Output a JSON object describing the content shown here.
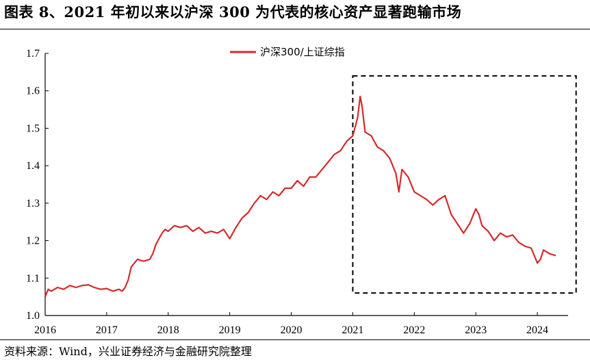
{
  "title": "图表 8、2021 年初以来以沪深 300 为代表的核心资产显著跑输市场",
  "source": "资料来源：Wind，兴业证券经济与金融研究院整理",
  "colors": {
    "series": "#d42a2a",
    "axis": "#000000",
    "box": "#000000"
  },
  "chart_data": {
    "type": "line",
    "title": "",
    "xlabel": "",
    "ylabel": "",
    "legend": "top-center",
    "grid": false,
    "xlim": [
      2016.0,
      2024.5
    ],
    "ylim": [
      1.0,
      1.7
    ],
    "yticks": [
      "1.0",
      "1.1",
      "1.2",
      "1.3",
      "1.4",
      "1.5",
      "1.6",
      "1.7"
    ],
    "xticks": [
      "2016",
      "2017",
      "2018",
      "2019",
      "2020",
      "2021",
      "2022",
      "2023",
      "2024"
    ],
    "series": [
      {
        "name": "沪深300/上证综指",
        "x": [
          2016.0,
          2016.05,
          2016.1,
          2016.2,
          2016.3,
          2016.4,
          2016.5,
          2016.6,
          2016.7,
          2016.8,
          2016.9,
          2017.0,
          2017.1,
          2017.2,
          2017.25,
          2017.3,
          2017.35,
          2017.4,
          2017.45,
          2017.5,
          2017.6,
          2017.7,
          2017.75,
          2017.8,
          2017.9,
          2017.95,
          2018.0,
          2018.1,
          2018.2,
          2018.3,
          2018.4,
          2018.5,
          2018.6,
          2018.7,
          2018.8,
          2018.9,
          2019.0,
          2019.1,
          2019.2,
          2019.3,
          2019.4,
          2019.5,
          2019.6,
          2019.7,
          2019.8,
          2019.9,
          2020.0,
          2020.1,
          2020.2,
          2020.3,
          2020.4,
          2020.5,
          2020.6,
          2020.7,
          2020.8,
          2020.9,
          2021.0,
          2021.05,
          2021.08,
          2021.12,
          2021.15,
          2021.2,
          2021.3,
          2021.4,
          2021.5,
          2021.6,
          2021.7,
          2021.75,
          2021.8,
          2021.9,
          2022.0,
          2022.1,
          2022.2,
          2022.3,
          2022.4,
          2022.5,
          2022.6,
          2022.7,
          2022.8,
          2022.9,
          2023.0,
          2023.05,
          2023.1,
          2023.2,
          2023.3,
          2023.4,
          2023.5,
          2023.6,
          2023.7,
          2023.8,
          2023.9,
          2024.0,
          2024.05,
          2024.1,
          2024.2,
          2024.3
        ],
        "y": [
          1.05,
          1.07,
          1.065,
          1.075,
          1.07,
          1.08,
          1.075,
          1.08,
          1.082,
          1.075,
          1.07,
          1.072,
          1.065,
          1.07,
          1.065,
          1.075,
          1.095,
          1.13,
          1.14,
          1.15,
          1.145,
          1.15,
          1.165,
          1.19,
          1.22,
          1.23,
          1.225,
          1.24,
          1.235,
          1.24,
          1.225,
          1.235,
          1.22,
          1.225,
          1.22,
          1.23,
          1.205,
          1.235,
          1.26,
          1.275,
          1.3,
          1.32,
          1.31,
          1.33,
          1.32,
          1.34,
          1.34,
          1.36,
          1.345,
          1.37,
          1.37,
          1.39,
          1.41,
          1.43,
          1.44,
          1.465,
          1.48,
          1.51,
          1.53,
          1.585,
          1.56,
          1.49,
          1.48,
          1.45,
          1.44,
          1.42,
          1.38,
          1.33,
          1.39,
          1.37,
          1.33,
          1.32,
          1.31,
          1.295,
          1.31,
          1.32,
          1.27,
          1.245,
          1.22,
          1.245,
          1.285,
          1.27,
          1.24,
          1.225,
          1.2,
          1.22,
          1.21,
          1.215,
          1.195,
          1.185,
          1.18,
          1.14,
          1.15,
          1.175,
          1.165,
          1.16
        ]
      }
    ],
    "highlight_box": {
      "x": [
        2021.0,
        2024.63
      ],
      "y": [
        1.06,
        1.64
      ]
    }
  }
}
